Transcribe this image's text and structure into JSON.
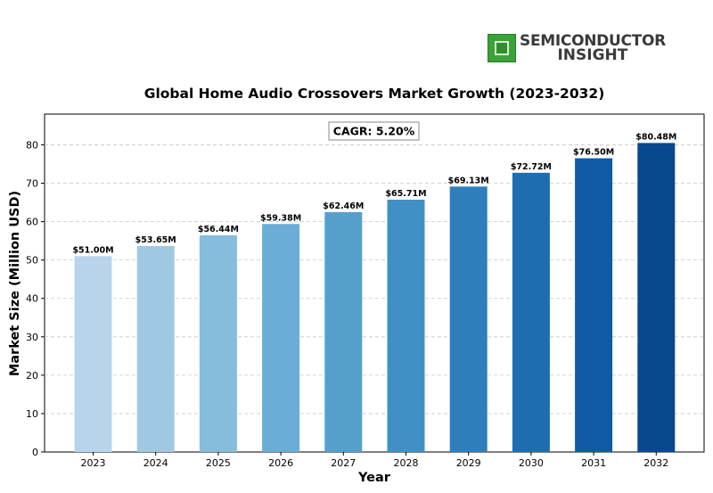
{
  "logo": {
    "line1": "SEMICONDUCTOR",
    "line2": "INSIGHT",
    "icon": "chip-icon",
    "color": "#3aa338"
  },
  "chart_data": {
    "type": "bar",
    "title": "Global Home Audio Crossovers Market Growth (2023-2032)",
    "xlabel": "Year",
    "ylabel": "Market Size (Million USD)",
    "categories": [
      "2023",
      "2024",
      "2025",
      "2026",
      "2027",
      "2028",
      "2029",
      "2030",
      "2031",
      "2032"
    ],
    "values": [
      51.0,
      53.65,
      56.44,
      59.38,
      62.46,
      65.71,
      69.13,
      72.72,
      76.5,
      80.48
    ],
    "data_labels": [
      "$51.00M",
      "$53.65M",
      "$56.44M",
      "$59.38M",
      "$62.46M",
      "$65.71M",
      "$69.13M",
      "$72.72M",
      "$76.50M",
      "$80.48M"
    ],
    "bar_colors": [
      "#b8d4ea",
      "#9fc9e2",
      "#86bcdc",
      "#6aadd6",
      "#559fcd",
      "#4090c5",
      "#2f7ebc",
      "#1f6db1",
      "#105ba4",
      "#08488e"
    ],
    "ylim": [
      0,
      88
    ],
    "yticks": [
      0,
      10,
      20,
      30,
      40,
      50,
      60,
      70,
      80
    ],
    "grid": true,
    "annotation": "CAGR: 5.20%"
  }
}
